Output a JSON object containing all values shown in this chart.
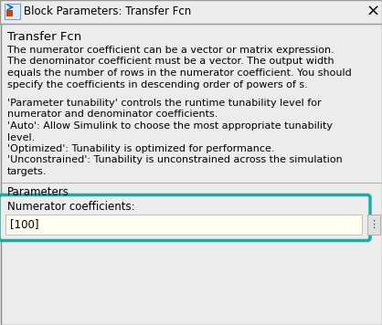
{
  "title_bar": "Block Parameters: Transfer Fcn",
  "section_title": "Transfer Fcn",
  "desc1_lines": [
    "The numerator coefficient can be a vector or matrix expression.",
    "The denominator coefficient must be a vector. The output width",
    "equals the number of rows in the numerator coefficient. You should",
    "specify the coefficients in descending order of powers of s."
  ],
  "desc2_lines": [
    "'Parameter tunability' controls the runtime tunability level for",
    "numerator and denominator coefficients.",
    "'Auto': Allow Simulink to choose the most appropriate tunability",
    "level.",
    "'Optimized': Tunability is optimized for performance.",
    "'Unconstrained': Tunability is unconstrained across the simulation",
    "targets."
  ],
  "params_label": "Parameters",
  "field_label": "Numerator coefficients:",
  "field_value": "[100]",
  "bg_color": "#ececec",
  "titlebar_bg": "#ececec",
  "text_color": "#000000",
  "input_bg": "#fffef0",
  "highlight_border_color": "#1aada4",
  "separator_color": "#b0b0b0"
}
